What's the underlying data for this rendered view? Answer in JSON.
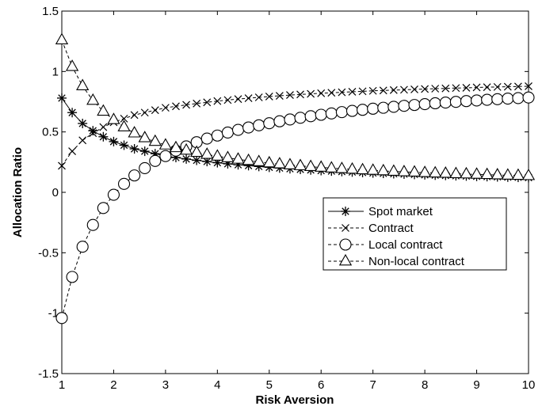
{
  "chart_data": {
    "type": "line",
    "title": "",
    "xlabel": "Risk Aversion",
    "ylabel": "Allocation Ratio",
    "xlim": [
      1,
      10
    ],
    "ylim": [
      -1.5,
      1.5
    ],
    "xticks": [
      1,
      2,
      3,
      4,
      5,
      6,
      7,
      8,
      9,
      10
    ],
    "yticks": [
      -1.5,
      -1,
      -0.5,
      0,
      0.5,
      1,
      1.5
    ],
    "xtick_labels": [
      "1",
      "2",
      "3",
      "4",
      "5",
      "6",
      "7",
      "8",
      "9",
      "10"
    ],
    "ytick_labels": [
      "-1.5",
      "-1",
      "-0.5",
      "0",
      "0.5",
      "1",
      "1.5"
    ],
    "grid": false,
    "legend_position": "center-right",
    "x_start": 1,
    "x_step": 0.2,
    "series": [
      {
        "name": "Spot market",
        "marker": "asterisk",
        "line_style": "solid",
        "values": [
          0.78,
          0.66,
          0.57,
          0.51,
          0.46,
          0.42,
          0.39,
          0.36,
          0.34,
          0.32,
          0.3,
          0.288,
          0.276,
          0.265,
          0.255,
          0.245,
          0.236,
          0.228,
          0.221,
          0.214,
          0.207,
          0.201,
          0.195,
          0.19,
          0.185,
          0.18,
          0.176,
          0.172,
          0.168,
          0.164,
          0.16,
          0.157,
          0.154,
          0.151,
          0.148,
          0.145,
          0.142,
          0.14,
          0.137,
          0.135,
          0.132,
          0.13,
          0.128,
          0.126,
          0.124,
          0.122
        ]
      },
      {
        "name": "Contract",
        "marker": "x",
        "line_style": "dashed",
        "values": [
          0.22,
          0.34,
          0.43,
          0.49,
          0.54,
          0.58,
          0.61,
          0.64,
          0.66,
          0.68,
          0.7,
          0.712,
          0.724,
          0.735,
          0.745,
          0.755,
          0.764,
          0.772,
          0.779,
          0.786,
          0.793,
          0.799,
          0.805,
          0.81,
          0.815,
          0.82,
          0.824,
          0.828,
          0.832,
          0.836,
          0.84,
          0.843,
          0.846,
          0.849,
          0.852,
          0.855,
          0.858,
          0.86,
          0.863,
          0.865,
          0.868,
          0.87,
          0.872,
          0.874,
          0.876,
          0.878
        ]
      },
      {
        "name": "Local contract",
        "marker": "circle",
        "line_style": "dashed",
        "values": [
          -1.04,
          -0.7,
          -0.45,
          -0.27,
          -0.13,
          -0.02,
          0.07,
          0.14,
          0.2,
          0.26,
          0.3,
          0.345,
          0.38,
          0.415,
          0.445,
          0.47,
          0.495,
          0.517,
          0.537,
          0.555,
          0.572,
          0.588,
          0.603,
          0.617,
          0.63,
          0.642,
          0.653,
          0.664,
          0.674,
          0.683,
          0.692,
          0.7,
          0.708,
          0.716,
          0.723,
          0.73,
          0.737,
          0.743,
          0.749,
          0.755,
          0.76,
          0.766,
          0.771,
          0.776,
          0.78,
          0.785
        ]
      },
      {
        "name": "Non-local contract",
        "marker": "triangle",
        "line_style": "dashed",
        "values": [
          1.26,
          1.04,
          0.88,
          0.76,
          0.67,
          0.6,
          0.54,
          0.49,
          0.45,
          0.42,
          0.39,
          0.368,
          0.347,
          0.329,
          0.313,
          0.298,
          0.285,
          0.273,
          0.262,
          0.252,
          0.242,
          0.234,
          0.226,
          0.219,
          0.212,
          0.206,
          0.2,
          0.195,
          0.19,
          0.185,
          0.181,
          0.177,
          0.173,
          0.169,
          0.166,
          0.162,
          0.159,
          0.156,
          0.153,
          0.151,
          0.148,
          0.146,
          0.143,
          0.141,
          0.139,
          0.137
        ]
      }
    ]
  }
}
